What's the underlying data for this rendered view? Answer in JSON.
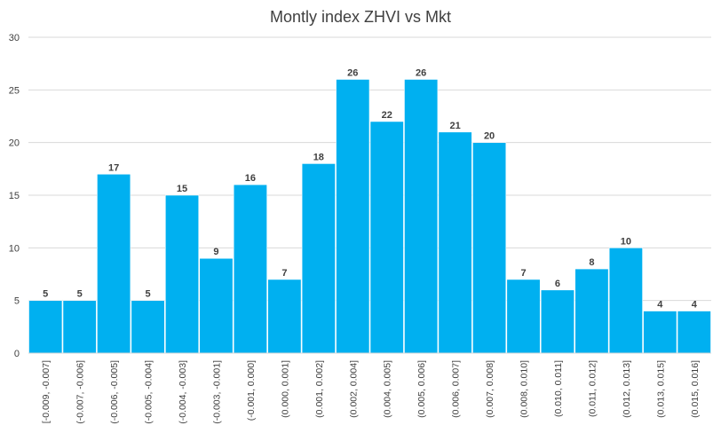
{
  "chart_data": {
    "type": "bar",
    "title": "Montly index ZHVI vs Mkt",
    "xlabel": "",
    "ylabel": "",
    "ylim": [
      0,
      30
    ],
    "yticks": [
      0,
      5,
      10,
      15,
      20,
      25,
      30
    ],
    "grid": true,
    "bar_color": "#00B0F0",
    "categories": [
      "[-0.009, -0.007]",
      "(-0.007, -0.006]",
      "(-0.006, -0.005]",
      "(-0.005, -0.004]",
      "(-0.004, -0.003]",
      "(-0.003, -0.001]",
      "(-0.001, 0.000]",
      "(0.000, 0.001]",
      "(0.001, 0.002]",
      "(0.002, 0.004]",
      "(0.004, 0.005]",
      "(0.005, 0.006]",
      "(0.006, 0.007]",
      "(0.007, 0.008]",
      "(0.008, 0.010]",
      "(0.010, 0.011]",
      "(0.011, 0.012]",
      "(0.012, 0.013]",
      "(0.013, 0.015]",
      "(0.015, 0.016]"
    ],
    "values": [
      5,
      5,
      17,
      5,
      15,
      9,
      16,
      7,
      18,
      26,
      22,
      26,
      21,
      20,
      7,
      6,
      8,
      10,
      4,
      4
    ]
  }
}
